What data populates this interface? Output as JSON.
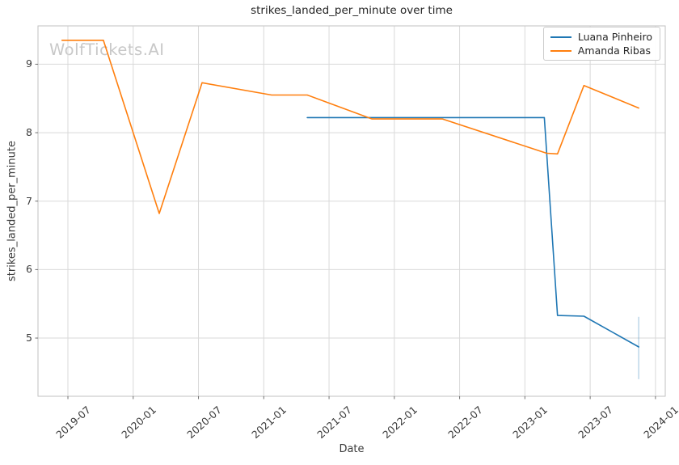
{
  "figure": {
    "watermark": "WolfTickets.AI"
  },
  "chart_data": {
    "type": "line",
    "title": "strikes_landed_per_minute over time",
    "xlabel": "Date",
    "ylabel": "strikes_landed_per_minute",
    "grid": true,
    "legend_position": "upper right",
    "x_axis": {
      "epoch": "2019-07",
      "ticks": [
        "2019-07",
        "2020-01",
        "2020-07",
        "2021-01",
        "2021-07",
        "2022-01",
        "2022-07",
        "2023-01",
        "2023-07",
        "2024-01"
      ],
      "min_months": -2.75,
      "max_months": 54.9
    },
    "y_axis": {
      "ticks": [
        5,
        6,
        7,
        8,
        9
      ],
      "min": 4.15,
      "max": 9.56
    },
    "series": [
      {
        "name": "Luana Pinheiro",
        "color": "#1f77b4",
        "points": [
          {
            "date": "2021-05-01",
            "value": 8.22
          },
          {
            "date": "2023-02-25",
            "value": 8.22
          },
          {
            "date": "2023-04-01",
            "value": 5.33
          },
          {
            "date": "2023-06-14",
            "value": 5.32
          },
          {
            "date": "2023-11-15",
            "value": 4.87
          }
        ]
      },
      {
        "name": "Amanda Ribas",
        "color": "#ff7f0e",
        "points": [
          {
            "date": "2019-06-15",
            "value": 9.35
          },
          {
            "date": "2019-10-09",
            "value": 9.35
          },
          {
            "date": "2020-03-13",
            "value": 6.82
          },
          {
            "date": "2020-07-11",
            "value": 8.73
          },
          {
            "date": "2021-01-23",
            "value": 8.55
          },
          {
            "date": "2021-05-01",
            "value": 8.55
          },
          {
            "date": "2021-10-30",
            "value": 8.2
          },
          {
            "date": "2022-05-14",
            "value": 8.2
          },
          {
            "date": "2023-03-01",
            "value": 7.7
          },
          {
            "date": "2023-04-01",
            "value": 7.69
          },
          {
            "date": "2023-06-14",
            "value": 8.69
          },
          {
            "date": "2023-11-15",
            "value": 8.36
          }
        ]
      }
    ],
    "error_bars": [
      {
        "series": "Luana Pinheiro",
        "date": "2023-11-15",
        "low": 4.4,
        "high": 5.31,
        "color": "rgba(31,119,180,0.32)"
      }
    ]
  },
  "style": {
    "background": "#ffffff",
    "grid_color": "#d9d9d9",
    "spine_color": "#c2c2c2",
    "tick_mark_color": "#6f6f6f",
    "tick_text_color": "#3a3a3a",
    "title_color": "#262626",
    "watermark_color": "#c8c8c8",
    "line_width": 1.6
  }
}
